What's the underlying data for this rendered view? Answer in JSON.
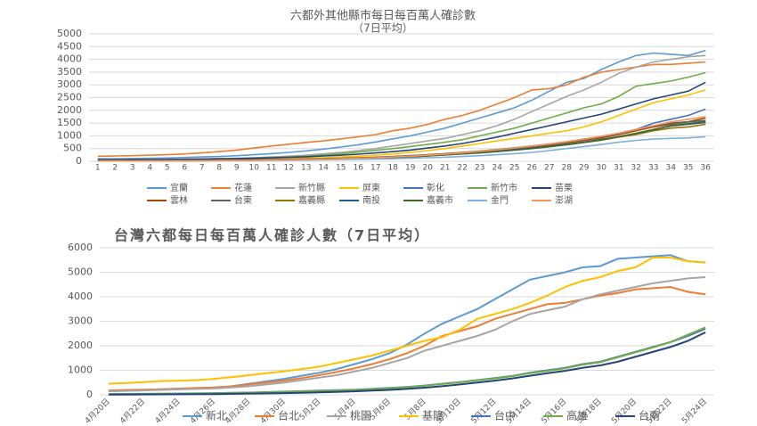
{
  "chart_data": [
    {
      "type": "line",
      "title": "六都外其他縣市每日每百萬人確診數",
      "subtitle": "（7日平均）",
      "categories": [
        "1",
        "2",
        "3",
        "4",
        "5",
        "6",
        "7",
        "8",
        "9",
        "10",
        "11",
        "12",
        "13",
        "14",
        "15",
        "16",
        "17",
        "18",
        "19",
        "20",
        "21",
        "22",
        "23",
        "24",
        "25",
        "26",
        "27",
        "28",
        "29",
        "30",
        "31",
        "32",
        "33",
        "34",
        "35",
        "36"
      ],
      "ylim": [
        0,
        5000
      ],
      "yticks": [
        0,
        500,
        1000,
        1500,
        2000,
        2500,
        3000,
        3500,
        4000,
        4500,
        5000
      ],
      "grid": true,
      "legend": "bottom",
      "series": [
        {
          "name": "宜蘭",
          "color": "#5b9bd5",
          "values": [
            100,
            100,
            110,
            120,
            130,
            150,
            170,
            190,
            220,
            260,
            300,
            350,
            410,
            480,
            560,
            650,
            760,
            880,
            1000,
            1150,
            1300,
            1500,
            1700,
            1900,
            2100,
            2400,
            2750,
            3100,
            3250,
            3600,
            3900,
            4150,
            4250,
            4200,
            4150,
            4350
          ]
        },
        {
          "name": "花蓮",
          "color": "#ed7d31",
          "values": [
            200,
            210,
            220,
            240,
            260,
            290,
            330,
            380,
            440,
            520,
            600,
            670,
            740,
            800,
            880,
            960,
            1050,
            1200,
            1300,
            1450,
            1650,
            1800,
            2000,
            2250,
            2500,
            2800,
            2850,
            3000,
            3300,
            3500,
            3600,
            3700,
            3800,
            3800,
            3850,
            3900
          ]
        },
        {
          "name": "新竹縣",
          "color": "#a5a5a5",
          "values": [
            50,
            55,
            60,
            65,
            70,
            80,
            90,
            100,
            120,
            140,
            170,
            200,
            240,
            290,
            350,
            420,
            500,
            600,
            700,
            800,
            900,
            1050,
            1200,
            1400,
            1650,
            1950,
            2250,
            2550,
            2800,
            3100,
            3450,
            3700,
            3900,
            4000,
            4100,
            4150
          ]
        },
        {
          "name": "屏東",
          "color": "#ffc000",
          "values": [
            30,
            30,
            35,
            40,
            45,
            50,
            55,
            60,
            70,
            80,
            90,
            100,
            120,
            140,
            170,
            200,
            240,
            290,
            350,
            420,
            500,
            600,
            700,
            800,
            900,
            1000,
            1100,
            1200,
            1350,
            1550,
            1800,
            2050,
            2300,
            2450,
            2600,
            2800
          ]
        },
        {
          "name": "彰化",
          "color": "#4472c4",
          "values": [
            20,
            20,
            25,
            25,
            30,
            30,
            35,
            40,
            45,
            50,
            60,
            70,
            80,
            90,
            110,
            130,
            150,
            180,
            210,
            250,
            290,
            330,
            380,
            430,
            500,
            580,
            660,
            750,
            850,
            950,
            1100,
            1250,
            1500,
            1650,
            1800,
            2050
          ]
        },
        {
          "name": "新竹市",
          "color": "#70ad47",
          "values": [
            40,
            40,
            45,
            50,
            55,
            60,
            70,
            80,
            90,
            110,
            130,
            160,
            200,
            250,
            300,
            360,
            430,
            500,
            580,
            660,
            750,
            850,
            1000,
            1150,
            1300,
            1500,
            1700,
            1900,
            2100,
            2250,
            2550,
            2950,
            3050,
            3150,
            3300,
            3480
          ]
        },
        {
          "name": "苗栗",
          "color": "#264478",
          "values": [
            60,
            60,
            65,
            70,
            75,
            80,
            90,
            100,
            110,
            125,
            140,
            160,
            180,
            210,
            240,
            280,
            330,
            380,
            440,
            520,
            600,
            700,
            820,
            950,
            1100,
            1250,
            1400,
            1550,
            1700,
            1850,
            2050,
            2250,
            2450,
            2600,
            2750,
            3100
          ]
        },
        {
          "name": "雲林",
          "color": "#9e480e",
          "values": [
            30,
            30,
            30,
            35,
            35,
            40,
            45,
            50,
            55,
            60,
            70,
            80,
            90,
            100,
            120,
            140,
            160,
            190,
            220,
            260,
            300,
            350,
            400,
            460,
            520,
            580,
            650,
            730,
            820,
            920,
            1050,
            1200,
            1350,
            1450,
            1550,
            1700
          ]
        },
        {
          "name": "台東",
          "color": "#636363",
          "values": [
            20,
            20,
            20,
            25,
            25,
            30,
            35,
            40,
            45,
            50,
            60,
            70,
            80,
            95,
            110,
            130,
            150,
            180,
            210,
            250,
            290,
            340,
            400,
            460,
            530,
            600,
            680,
            770,
            870,
            980,
            1100,
            1250,
            1400,
            1500,
            1550,
            1600
          ]
        },
        {
          "name": "嘉義縣",
          "color": "#997300",
          "values": [
            20,
            20,
            20,
            20,
            25,
            25,
            30,
            35,
            40,
            45,
            50,
            60,
            70,
            80,
            95,
            110,
            130,
            150,
            180,
            210,
            250,
            290,
            340,
            390,
            450,
            510,
            580,
            650,
            740,
            830,
            950,
            1050,
            1200,
            1300,
            1350,
            1450
          ]
        },
        {
          "name": "南投",
          "color": "#255e91",
          "values": [
            15,
            15,
            20,
            20,
            25,
            25,
            30,
            35,
            40,
            45,
            55,
            65,
            75,
            85,
            100,
            120,
            140,
            160,
            190,
            220,
            260,
            300,
            350,
            400,
            460,
            520,
            590,
            670,
            760,
            860,
            970,
            1100,
            1250,
            1380,
            1450,
            1520
          ]
        },
        {
          "name": "嘉義市",
          "color": "#43682b",
          "values": [
            10,
            10,
            15,
            15,
            20,
            20,
            25,
            30,
            35,
            40,
            50,
            60,
            70,
            80,
            95,
            110,
            130,
            150,
            180,
            210,
            250,
            290,
            330,
            380,
            440,
            500,
            570,
            650,
            740,
            840,
            960,
            1100,
            1250,
            1400,
            1480,
            1560
          ]
        },
        {
          "name": "金門",
          "color": "#7cafdd",
          "values": [
            10,
            10,
            10,
            15,
            15,
            20,
            20,
            25,
            30,
            35,
            40,
            45,
            50,
            60,
            70,
            80,
            90,
            100,
            120,
            140,
            160,
            190,
            220,
            260,
            300,
            350,
            420,
            500,
            580,
            660,
            750,
            820,
            870,
            900,
            920,
            960
          ]
        },
        {
          "name": "澎湖",
          "color": "#f1975a",
          "values": [
            10,
            10,
            10,
            15,
            15,
            20,
            25,
            30,
            35,
            40,
            50,
            60,
            70,
            80,
            100,
            120,
            140,
            170,
            200,
            240,
            280,
            330,
            390,
            450,
            520,
            600,
            680,
            770,
            870,
            980,
            1100,
            1250,
            1400,
            1550,
            1650,
            1750
          ]
        }
      ]
    },
    {
      "type": "line",
      "title": "台灣六都每日每百萬人確診人數（7日平均）",
      "categories": [
        "4月20日",
        null,
        "4月22日",
        null,
        "4月24日",
        null,
        "4月26日",
        null,
        "4月28日",
        null,
        "4月30日",
        null,
        "5月2日",
        null,
        "5月4日",
        null,
        "5月6日",
        null,
        "5月8日",
        null,
        "5月10日",
        null,
        "5月12日",
        null,
        "5月14日",
        null,
        "5月16日",
        null,
        "5月18日",
        null,
        "5月20日",
        null,
        "5月22日",
        null,
        "5月24日"
      ],
      "ylim": [
        0,
        6000
      ],
      "yticks": [
        0,
        1000,
        2000,
        3000,
        4000,
        5000,
        6000
      ],
      "grid": true,
      "legend": "bottom",
      "series": [
        {
          "name": "新北",
          "color": "#5b9bd5",
          "values": [
            150,
            170,
            200,
            220,
            250,
            270,
            300,
            350,
            450,
            550,
            650,
            780,
            900,
            1050,
            1250,
            1450,
            1700,
            2050,
            2500,
            2900,
            3200,
            3500,
            3900,
            4300,
            4700,
            4850,
            5000,
            5200,
            5250,
            5550,
            5600,
            5650,
            5700,
            5450,
            5400
          ]
        },
        {
          "name": "台北",
          "color": "#ed7d31",
          "values": [
            180,
            200,
            210,
            230,
            250,
            280,
            300,
            340,
            420,
            500,
            580,
            680,
            800,
            930,
            1080,
            1250,
            1450,
            1700,
            2000,
            2400,
            2600,
            2800,
            3100,
            3300,
            3500,
            3700,
            3750,
            3900,
            4050,
            4150,
            4300,
            4350,
            4400,
            4200,
            4100
          ]
        },
        {
          "name": "桃園",
          "color": "#a5a5a5",
          "values": [
            150,
            160,
            180,
            200,
            220,
            240,
            260,
            300,
            350,
            420,
            500,
            600,
            700,
            800,
            950,
            1100,
            1300,
            1500,
            1800,
            2000,
            2200,
            2400,
            2650,
            3000,
            3300,
            3450,
            3600,
            3900,
            4100,
            4250,
            4400,
            4550,
            4650,
            4750,
            4800
          ]
        },
        {
          "name": "基隆",
          "color": "#ffc000",
          "values": [
            450,
            480,
            520,
            560,
            580,
            600,
            650,
            720,
            800,
            880,
            960,
            1050,
            1150,
            1300,
            1450,
            1600,
            1800,
            2000,
            2200,
            2350,
            2650,
            3100,
            3300,
            3500,
            3750,
            4050,
            4400,
            4650,
            4800,
            5050,
            5200,
            5600,
            5600,
            5450,
            5400
          ]
        },
        {
          "name": "台中",
          "color": "#4472c4",
          "values": [
            30,
            35,
            40,
            45,
            50,
            60,
            70,
            80,
            90,
            110,
            130,
            150,
            170,
            190,
            210,
            240,
            280,
            320,
            380,
            450,
            520,
            600,
            680,
            770,
            900,
            1000,
            1100,
            1250,
            1350,
            1550,
            1750,
            1950,
            2150,
            2400,
            2700
          ]
        },
        {
          "name": "高雄",
          "color": "#70ad47",
          "values": [
            20,
            25,
            30,
            35,
            40,
            50,
            60,
            70,
            80,
            100,
            120,
            140,
            160,
            180,
            200,
            230,
            270,
            310,
            370,
            440,
            510,
            590,
            670,
            760,
            880,
            980,
            1080,
            1230,
            1330,
            1530,
            1730,
            1930,
            2150,
            2450,
            2750
          ]
        },
        {
          "name": "台南",
          "color": "#264478",
          "values": [
            10,
            12,
            15,
            18,
            20,
            25,
            30,
            40,
            50,
            60,
            70,
            85,
            100,
            120,
            140,
            170,
            200,
            240,
            290,
            350,
            420,
            500,
            580,
            670,
            780,
            880,
            980,
            1100,
            1200,
            1350,
            1550,
            1750,
            1950,
            2200,
            2550
          ]
        }
      ]
    }
  ]
}
